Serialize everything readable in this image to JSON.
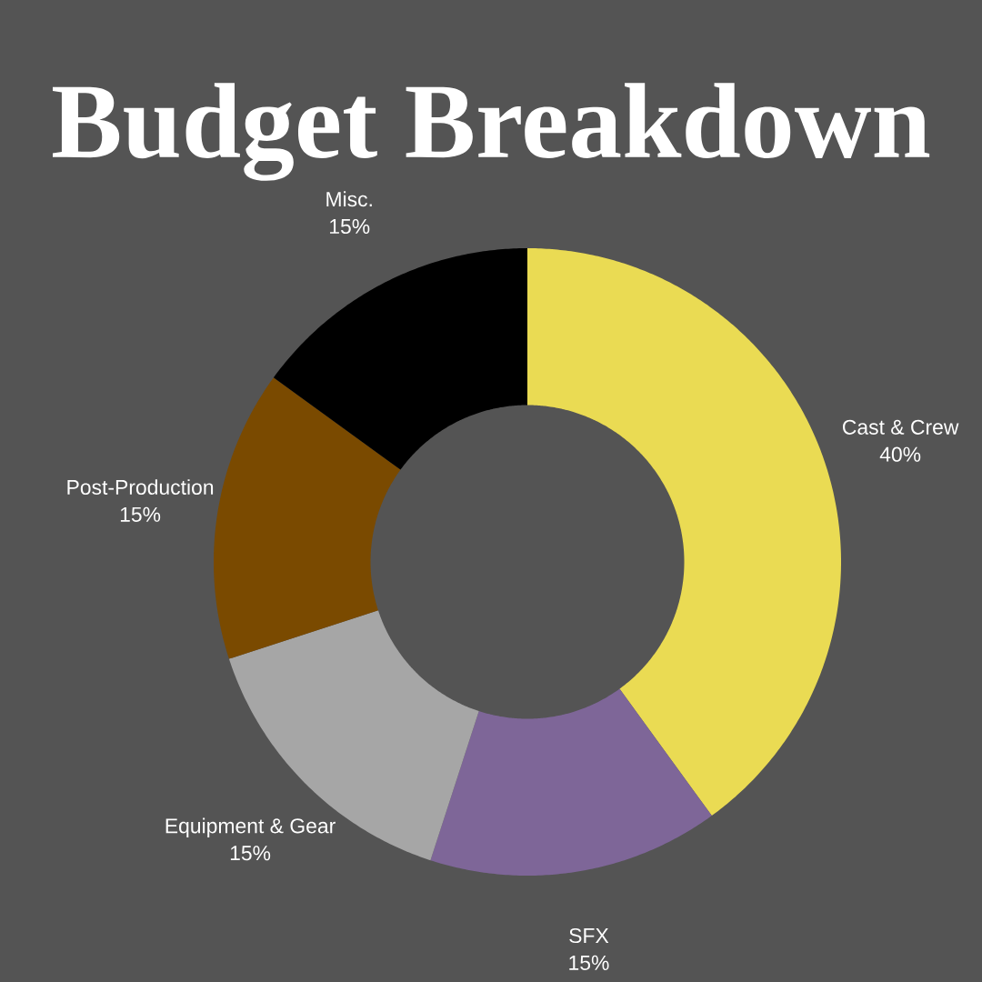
{
  "chart_data": {
    "type": "donut",
    "title": "Budget Breakdown",
    "categories": [
      "Cast & Crew",
      "SFX",
      "Equipment & Gear",
      "Post-Production",
      "Misc."
    ],
    "values": [
      40,
      15,
      15,
      15,
      15
    ],
    "colors": [
      "#eadb53",
      "#7e6698",
      "#a6a6a6",
      "#7a4a00",
      "#000000"
    ],
    "value_labels": [
      "40%",
      "15%",
      "15%",
      "15%",
      "15%"
    ]
  }
}
